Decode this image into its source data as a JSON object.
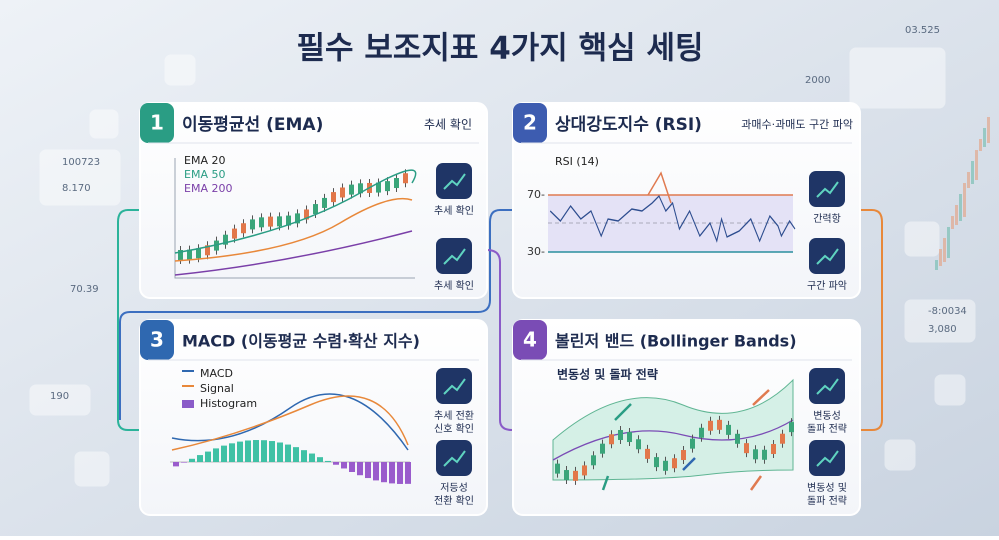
{
  "title": "필수 보조지표 4가지 핵심 세팅",
  "panels": [
    {
      "number": "1",
      "title": "이동평균선 (EMA)",
      "tag": "추세 확인",
      "legend": [
        "EMA 20",
        "EMA 50",
        "EMA 200"
      ],
      "icons": [
        [
          "추세 확인"
        ],
        [
          "추세 확인"
        ]
      ]
    },
    {
      "number": "2",
      "title": "상대강도지수 (RSI)",
      "tag": "과매수·과매도 구간 파악",
      "chart_label": "RSI (14)",
      "levels": [
        "70-",
        "30-"
      ],
      "icons": [
        [
          "간력항"
        ],
        [
          "구간 파악"
        ]
      ]
    },
    {
      "number": "3",
      "title": "MACD (이동평균 수렴·확산 지수)",
      "legend": [
        "MACD",
        "Signal",
        "Histogram"
      ],
      "icons": [
        [
          "추세 전환",
          "신호 확인"
        ],
        [
          "저등성",
          "전환 확인"
        ]
      ]
    },
    {
      "number": "4",
      "title": "볼린저 밴드 (Bollinger Bands)",
      "subtitle": "변동성 및 돌파 전략",
      "icons": [
        [
          "변동성",
          "돌파 전략"
        ],
        [
          "변동성 및",
          "돌파 전략"
        ]
      ]
    }
  ],
  "decor": [
    "03.525",
    "2000",
    "100723",
    "8.170",
    "70.39",
    "190",
    "-8:0034",
    "3,080"
  ]
}
